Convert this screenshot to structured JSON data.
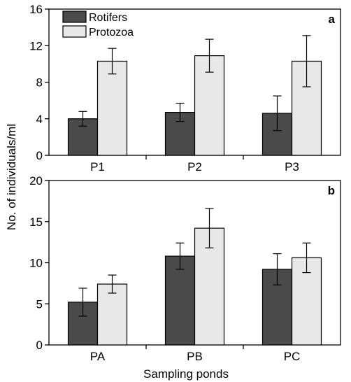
{
  "ylabel": "No. of individuals/ml",
  "xlabel": "Sampling ponds",
  "series_colors": {
    "Rotifers": "#4a4a4a",
    "Protozoa": "#e8e8e8"
  },
  "chart_data": [
    {
      "type": "bar",
      "panel_label": "a",
      "categories": [
        "P1",
        "P2",
        "P3"
      ],
      "ylim": [
        0,
        16
      ],
      "yticks": [
        0,
        4,
        8,
        12,
        16
      ],
      "legend": "top-left",
      "grid": false,
      "series": [
        {
          "name": "Rotifers",
          "values": [
            4.0,
            4.7,
            4.6
          ],
          "errors": [
            0.8,
            1.0,
            1.9
          ]
        },
        {
          "name": "Protozoa",
          "values": [
            10.3,
            10.9,
            10.3
          ],
          "errors": [
            1.4,
            1.8,
            2.8
          ]
        }
      ]
    },
    {
      "type": "bar",
      "panel_label": "b",
      "categories": [
        "PA",
        "PB",
        "PC"
      ],
      "ylim": [
        0,
        20
      ],
      "yticks": [
        0,
        5,
        10,
        15,
        20
      ],
      "grid": false,
      "series": [
        {
          "name": "Rotifers",
          "values": [
            5.2,
            10.8,
            9.2
          ],
          "errors": [
            1.7,
            1.6,
            1.9
          ]
        },
        {
          "name": "Protozoa",
          "values": [
            7.4,
            14.2,
            10.6
          ],
          "errors": [
            1.1,
            2.4,
            1.8
          ]
        }
      ]
    }
  ]
}
